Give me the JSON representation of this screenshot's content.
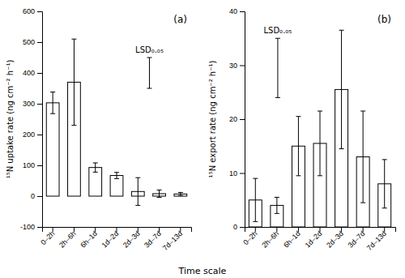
{
  "chart_data": [
    {
      "type": "bar",
      "title": "(a)",
      "categories": [
        "0–2h",
        "2h–6h",
        "6h–1d",
        "1d–2d",
        "2d–3d",
        "3d–7d",
        "7d–13d"
      ],
      "values": [
        303,
        370,
        93,
        67,
        15,
        8,
        7
      ],
      "errors": [
        35,
        140,
        15,
        10,
        45,
        12,
        5
      ],
      "color": "white",
      "ylabel": "¹⁵N uptake rate (ng cm⁻² h⁻¹)",
      "xlabel": "Time scale",
      "ylim": [
        -100,
        600
      ],
      "yticks": [
        -100,
        0,
        100,
        200,
        300,
        400,
        500,
        600
      ],
      "annotations": [
        {
          "text": "LSD₀.₀₅",
          "value": 400,
          "error": 50
        }
      ]
    },
    {
      "type": "bar",
      "title": "(b)",
      "categories": [
        "0–2h",
        "2h–6h",
        "6h–1d",
        "1d–2d",
        "2d–3d",
        "3d–7d",
        "7d–13d"
      ],
      "values": [
        5,
        4,
        15,
        15.5,
        25.5,
        13,
        8
      ],
      "errors": [
        4,
        1.5,
        5.5,
        6,
        11,
        8.5,
        4.5
      ],
      "color": "white",
      "ylabel": "¹⁵N export rate (ng cm⁻² h⁻¹)",
      "ylim": [
        0,
        40
      ],
      "yticks": [
        0,
        10,
        20,
        30,
        40
      ],
      "annotations": [
        {
          "text": "LSD₀.₀₅",
          "value": 29.5,
          "error": 5.5
        }
      ]
    }
  ]
}
